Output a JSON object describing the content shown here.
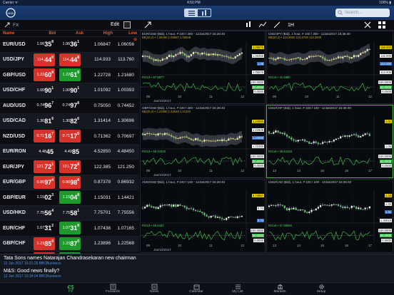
{
  "status_bar": {
    "carrier": "Carrier ᯤ",
    "time": "4:50 PM",
    "battery": "100% ▮"
  },
  "nav": {
    "search_placeholder": "Search..."
  },
  "toolbar": {
    "fx_label": "FX",
    "edit_label": "Edit",
    "timeframe": "1H"
  },
  "grid": {
    "headers": {
      "name": "Name",
      "bid": "Bid",
      "ask": "Ask",
      "high": "High",
      "low": "Low"
    },
    "rows": [
      {
        "symbol": "EUR/USD",
        "bid_pre": "1.06",
        "bid_big": "35",
        "bid_sup": "8",
        "bid_color": "neutral",
        "ask_pre": "1.06",
        "ask_big": "36",
        "ask_sup": "1",
        "ask_color": "neutral",
        "high": "1.06847",
        "low": "1.06056"
      },
      {
        "symbol": "USD/JPY",
        "bid_pre": "114.",
        "bid_big": "44",
        "bid_sup": "0",
        "bid_color": "red",
        "ask_pre": "114.",
        "ask_big": "44",
        "ask_sup": "8",
        "ask_color": "red",
        "high": "114.933",
        "low": "113.760"
      },
      {
        "symbol": "GBP/USD",
        "bid_pre": "1.22",
        "bid_big": "60",
        "bid_sup": "8",
        "bid_color": "red",
        "ask_pre": "1.22",
        "ask_big": "61",
        "ask_sup": "8",
        "ask_color": "green",
        "high": "1.22728",
        "low": "1.21680"
      },
      {
        "symbol": "USD/CHF",
        "bid_pre": "1.00",
        "bid_big": "90",
        "bid_sup": "1",
        "bid_color": "neutral",
        "ask_pre": "1.00",
        "ask_big": "90",
        "ask_sup": "1",
        "ask_color": "neutral",
        "high": "1.01092",
        "low": "1.00393"
      },
      {
        "symbol": "AUD/USD",
        "bid_pre": "0.74",
        "bid_big": "96",
        "bid_sup": "7",
        "bid_color": "neutral",
        "ask_pre": "0.74",
        "ask_big": "97",
        "ask_sup": "8",
        "ask_color": "neutral",
        "high": "0.75050",
        "low": "0.74452"
      },
      {
        "symbol": "USD/CAD",
        "bid_pre": "1.30",
        "bid_big": "81",
        "bid_sup": "6",
        "bid_color": "neutral",
        "ask_pre": "1.30",
        "ask_big": "82",
        "ask_sup": "6",
        "ask_color": "neutral",
        "high": "1.31414",
        "low": "1.30696"
      },
      {
        "symbol": "NZD/USD",
        "bid_pre": "0.71",
        "bid_big": "16",
        "bid_sup": "7",
        "bid_color": "red",
        "ask_pre": "0.71",
        "ask_big": "17",
        "ask_sup": "5",
        "ask_color": "red",
        "high": "0.71362",
        "low": "0.70697"
      },
      {
        "symbol": "EUR/RON",
        "bid_pre": "4.48",
        "bid_big": "45",
        "bid_sup": "",
        "bid_color": "neutral",
        "ask_pre": "4.49",
        "ask_big": "85",
        "ask_sup": "",
        "ask_color": "neutral",
        "high": "4.52850",
        "low": "4.48450"
      },
      {
        "symbol": "EUR/JPY",
        "bid_pre": "121.",
        "bid_big": "72",
        "bid_sup": "1",
        "bid_color": "red",
        "ask_pre": "121.",
        "ask_big": "72",
        "ask_sup": "8",
        "ask_color": "red",
        "high": "122.385",
        "low": "121.250"
      },
      {
        "symbol": "EUR/GBP",
        "bid_pre": "0.86",
        "bid_big": "97",
        "bid_sup": "4",
        "bid_color": "red",
        "ask_pre": "0.86",
        "ask_big": "98",
        "ask_sup": "8",
        "ask_color": "red",
        "high": "0.87378",
        "low": "0.86932"
      },
      {
        "symbol": "GBP/EUR",
        "bid_pre": "1.15",
        "bid_big": "02",
        "bid_sup": "3",
        "bid_color": "neutral",
        "ask_pre": "1.15",
        "ask_big": "04",
        "ask_sup": "8",
        "ask_color": "green",
        "high": "1.15031",
        "low": "1.14421"
      },
      {
        "symbol": "USD/HKD",
        "bid_pre": "7.75",
        "bid_big": "56",
        "bid_sup": "4",
        "bid_color": "neutral",
        "ask_pre": "7.75",
        "ask_big": "58",
        "ask_sup": "1",
        "ask_color": "neutral",
        "high": "7.75701",
        "low": "7.75556"
      },
      {
        "symbol": "EUR/CHF",
        "bid_pre": "1.07",
        "bid_big": "31",
        "bid_sup": "2",
        "bid_color": "neutral",
        "ask_pre": "1.07",
        "ask_big": "31",
        "ask_sup": "8",
        "ask_color": "green",
        "high": "1.07438",
        "low": "1.07165"
      },
      {
        "symbol": "GBP/CHF",
        "bid_pre": "1.23",
        "bid_big": "85",
        "bid_sup": "9",
        "bid_color": "red",
        "ask_pre": "1.23",
        "ask_big": "87",
        "ask_sup": "0",
        "ask_color": "green",
        "high": "1.23896",
        "low": "1.22568"
      },
      {
        "symbol": "GBP/CAD",
        "bid_pre": "1.60",
        "bid_big": "35",
        "bid_sup": "6",
        "bid_color": "red",
        "ask_pre": "1.60",
        "ask_big": "35",
        "ask_sup": "9",
        "ask_color": "green",
        "high": "1.60472",
        "low": "1.59381"
      }
    ]
  },
  "charts": [
    {
      "id": "eurusd",
      "title": "EUR/USD (Bid), 1 hour, # 100 / 300 - 12Jan2017 16:36:40",
      "overlay": "BB(20,2) ▪ 1.06490 1.06587 1.05548",
      "rsi": "RSI14 ▪ 67.8877",
      "x_ticks": [
        "09",
        "10",
        "11",
        "12"
      ],
      "x_sub": "Jan/10/2017",
      "y_tags": [
        "1.06576",
        "1.06358",
        "1.06",
        "1.05576"
      ],
      "rsi_tags": [
        "100.0000",
        "50.0000",
        "0.0000"
      ]
    },
    {
      "id": "usdjpy",
      "title": "USD/JPY (Bid), 1 hour, # 100 / 300 - 12Jan2017 16:36:40",
      "overlay": "BB(20,2) ▪ 114.9000 115.5700 114.3000",
      "rsi": "RSI14 ▪ 41.5880",
      "x_ticks": [
        "09",
        "10",
        "11",
        "12"
      ],
      "x_sub": "",
      "y_tags": [
        "116.000",
        "115.000",
        "114.440",
        "113.000"
      ],
      "rsi_tags": [
        "100.0000",
        "50.0000",
        "0.0000"
      ]
    },
    {
      "id": "gbpusd",
      "title": "GBP/USD (Bid), 1 hour, # 100 / 300 - 12Jan2017 16:36:40",
      "overlay": "BB(20,2) ▪ 1.21980 1.22549 1.21310",
      "rsi": "RSI14 ▪ 59.34333",
      "x_ticks": [
        "09",
        "10",
        "11",
        "12"
      ],
      "x_sub": "Jan/10/2017",
      "y_tags": [
        "1.23000",
        "1.22608",
        "1.22000",
        "1.21000"
      ],
      "rsi_tags": [
        "100.0000",
        "50.0000",
        "0.0000"
      ]
    },
    {
      "id": "usdchf",
      "title": "USD/CHF (Bid), 1 hour, # 100 / 100 - 12Jan2017 16:36:40",
      "overlay": "",
      "rsi": "RSI14 ▪ 39.64153",
      "x_ticks": [
        "13",
        "14",
        "15",
        "16",
        "17"
      ],
      "x_sub": "",
      "y_tags": [
        "1.01",
        "1.00"
      ],
      "rsi_tags": [
        "100.0000",
        "50.0000",
        "0.0000"
      ]
    },
    {
      "id": "audusd",
      "title": "AUD/USD (Bid), 1 hour, # 100 / 100 - 12Jan2017 16:36:40",
      "overlay": "",
      "rsi": "RSI14 ▪ 66.5424",
      "x_ticks": [
        "09",
        "10",
        "11",
        "12"
      ],
      "x_sub": "Jan/10/2017",
      "y_tags": [
        "0.74967",
        "0.74",
        "0.73"
      ],
      "rsi_tags": [
        "100.0000",
        "50.0000",
        "0.0000"
      ]
    },
    {
      "id": "usdcad",
      "title": "USD/CAD (Bid), 1 hour, # 100 / 100 - 12Jan2017 16:36:40",
      "overlay": "",
      "rsi": "RSI14 ▪ 37.98560",
      "x_ticks": [
        "13",
        "14",
        "15",
        "16",
        "17"
      ],
      "x_sub": "",
      "y_tags": [
        "1.33",
        "1.32",
        "1.31",
        "1.30816"
      ],
      "rsi_tags": [
        "100.0000",
        "50.0000",
        "0.0000"
      ]
    }
  ],
  "news": [
    {
      "headline": "Tata Sons names Natarajan Chandrasekaran new chairman",
      "meta": "12 Jan 2017 16:21:26 BBCBusiness"
    },
    {
      "headline": "M&S: Good news finally?",
      "meta": "12 Jan 2017 16:34:04 BBCBusiness"
    }
  ],
  "tabs": [
    {
      "label": "FX",
      "icon": "currency-icon",
      "active": true
    },
    {
      "label": "Forwards",
      "icon": "forwards-icon",
      "active": false
    },
    {
      "label": "News",
      "icon": "news-icon",
      "active": false
    },
    {
      "label": "Calendar",
      "icon": "calendar-icon",
      "active": false
    },
    {
      "label": "My List",
      "icon": "list-icon",
      "active": false
    },
    {
      "label": "Markets",
      "icon": "markets-icon",
      "active": false
    },
    {
      "label": "Setup",
      "icon": "gear-icon",
      "active": false
    }
  ],
  "colors": {
    "nav": "#143263",
    "bid_red": "#d8332a",
    "ask_green": "#1c9a2c",
    "header_orange": "#e8562a",
    "active_tab": "#2fd14a",
    "news_meta": "#4f8fe0"
  }
}
